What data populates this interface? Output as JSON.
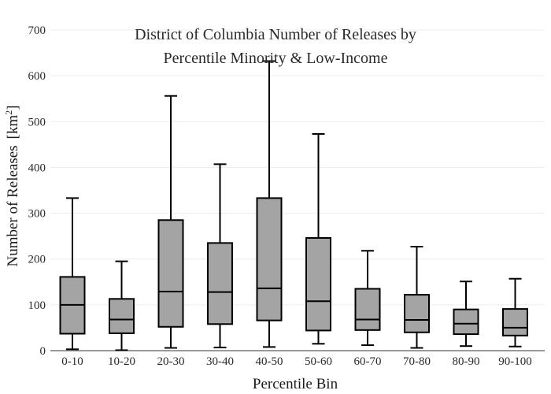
{
  "chart_data": {
    "type": "box",
    "title_lines": [
      "District of Columbia Number of Releases by",
      "Percentile Minority & Low-Income"
    ],
    "xlabel": "Percentile Bin",
    "ylabel": "Number of Releases",
    "ylabel_unit": "[km",
    "ylabel_unit_sup": "2",
    "ylabel_unit_close": "]",
    "ylim": [
      0,
      700
    ],
    "yticks": [
      0,
      100,
      200,
      300,
      400,
      500,
      600,
      700
    ],
    "grid": true,
    "categories": [
      "0-10",
      "10-20",
      "20-30",
      "30-40",
      "40-50",
      "50-60",
      "60-70",
      "70-80",
      "80-90",
      "90-100"
    ],
    "boxes": [
      {
        "min": 3,
        "q1": 37,
        "median": 100,
        "q3": 161,
        "max": 333
      },
      {
        "min": 1,
        "q1": 38,
        "median": 68,
        "q3": 113,
        "max": 195
      },
      {
        "min": 6,
        "q1": 52,
        "median": 129,
        "q3": 285,
        "max": 556
      },
      {
        "min": 7,
        "q1": 58,
        "median": 128,
        "q3": 235,
        "max": 407
      },
      {
        "min": 8,
        "q1": 66,
        "median": 136,
        "q3": 333,
        "max": 632
      },
      {
        "min": 15,
        "q1": 44,
        "median": 108,
        "q3": 246,
        "max": 473
      },
      {
        "min": 12,
        "q1": 45,
        "median": 68,
        "q3": 135,
        "max": 218
      },
      {
        "min": 6,
        "q1": 40,
        "median": 67,
        "q3": 122,
        "max": 227
      },
      {
        "min": 10,
        "q1": 36,
        "median": 59,
        "q3": 90,
        "max": 151
      },
      {
        "min": 9,
        "q1": 33,
        "median": 50,
        "q3": 91,
        "max": 157
      }
    ]
  }
}
